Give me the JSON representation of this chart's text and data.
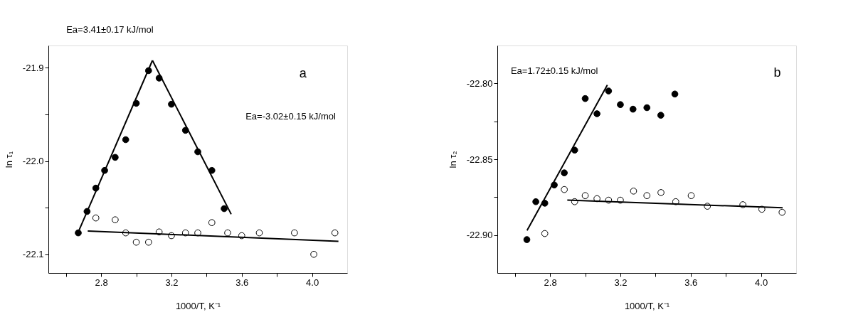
{
  "chart_data": [
    {
      "type": "scatter",
      "xlabel": "1000/T, K⁻¹",
      "ylabel": "ln τ₁",
      "marker": "circle",
      "line_style": "solid",
      "grid": false,
      "xlim": [
        2.5,
        4.2
      ],
      "ylim": [
        -22.12,
        -21.876
      ],
      "xticks": [
        {
          "value": 2.6,
          "label": null
        },
        2.8,
        {
          "value": 3.0,
          "label": null
        },
        3.2,
        {
          "value": 3.4,
          "label": null
        },
        3.6,
        {
          "value": 3.8,
          "label": null
        },
        {
          "value": 4.0,
          "label": "4.0"
        }
      ],
      "yticks": [
        -21.9,
        {
          "value": -21.95,
          "label": null
        },
        {
          "value": -22.0,
          "label": "-22.0"
        },
        {
          "value": -22.05,
          "label": null
        },
        -22.1
      ],
      "annotations": [
        "Ea=3.41±0.17 kJ/mol",
        "Ea=-3.02±0.15 kJ/mol",
        "a"
      ],
      "series": [
        {
          "color": "#000000",
          "x": [
            2.67,
            2.72,
            2.77,
            2.82,
            2.88,
            2.94,
            3.0,
            3.07,
            3.13,
            3.2,
            3.28,
            3.35,
            3.43,
            3.5
          ],
          "values": [
            -22.077,
            -22.054,
            -22.029,
            -22.01,
            -21.996,
            -21.977,
            -21.938,
            -21.903,
            -21.911,
            -21.939,
            -21.967,
            -21.99,
            -22.01,
            -22.051
          ]
        },
        {
          "color": "#ffffff",
          "x": [
            2.77,
            2.88,
            2.94,
            3.0,
            3.07,
            3.13,
            3.2,
            3.28,
            3.35,
            3.43,
            3.52,
            3.6,
            3.7,
            3.9,
            4.01,
            4.13
          ],
          "values": [
            -22.061,
            -22.063,
            -22.077,
            -22.087,
            -22.087,
            -22.076,
            -22.08,
            -22.077,
            -22.077,
            -22.066,
            -22.077,
            -22.08,
            -22.077,
            -22.077,
            -22.1,
            -22.077
          ]
        },
        {
          "type": "line",
          "marker": "none",
          "color": "#000000",
          "x": [
            2.675,
            3.092
          ],
          "values": [
            -22.074,
            -21.892
          ]
        },
        {
          "type": "line",
          "marker": "none",
          "color": "#000000",
          "x": [
            3.092,
            3.54
          ],
          "values": [
            -21.892,
            -22.057
          ]
        },
        {
          "type": "line",
          "marker": "none",
          "color": "#000000",
          "x": [
            2.724,
            4.15
          ],
          "values": [
            -22.075,
            -22.086
          ]
        }
      ]
    },
    {
      "type": "scatter",
      "xlabel": "1000/T, K⁻¹",
      "ylabel": "ln τ₂",
      "marker": "circle",
      "line_style": "solid",
      "grid": false,
      "xlim": [
        2.5,
        4.2
      ],
      "ylim": [
        -22.925,
        -22.775
      ],
      "xticks": [
        {
          "value": 2.6,
          "label": null
        },
        2.8,
        {
          "value": 3.0,
          "label": null
        },
        3.2,
        {
          "value": 3.4,
          "label": null
        },
        3.6,
        {
          "value": 3.8,
          "label": null
        },
        {
          "value": 4.0,
          "label": "4.0"
        }
      ],
      "yticks": [
        {
          "value": -22.8,
          "label": "-22.80"
        },
        {
          "value": -22.825,
          "label": null
        },
        -22.85,
        {
          "value": -22.875,
          "label": null
        },
        {
          "value": -22.9,
          "label": "-22.90"
        }
      ],
      "annotations": [
        "Ea=1.72±0.15 kJ/mol",
        "b"
      ],
      "series": [
        {
          "color": "#000000",
          "x": [
            2.668,
            2.719,
            2.77,
            2.824,
            2.881,
            2.94,
            3.0,
            3.067,
            3.133,
            3.2,
            3.272,
            3.351,
            3.43,
            3.51
          ],
          "values": [
            -22.903,
            -22.878,
            -22.879,
            -22.867,
            -22.859,
            -22.844,
            -22.81,
            -22.82,
            -22.805,
            -22.814,
            -22.817,
            -22.816,
            -22.821,
            -22.807
          ]
        },
        {
          "color": "#ffffff",
          "x": [
            2.77,
            2.881,
            2.94,
            3.0,
            3.067,
            3.133,
            3.2,
            3.275,
            3.351,
            3.431,
            3.515,
            3.603,
            3.695,
            3.897,
            4.005,
            4.12
          ],
          "values": [
            -22.899,
            -22.87,
            -22.878,
            -22.874,
            -22.876,
            -22.877,
            -22.877,
            -22.871,
            -22.874,
            -22.872,
            -22.878,
            -22.874,
            -22.881,
            -22.88,
            -22.883,
            -22.885
          ]
        },
        {
          "type": "line",
          "marker": "none",
          "color": "#000000",
          "x": [
            2.669,
            3.126
          ],
          "values": [
            -22.897,
            -22.801
          ]
        },
        {
          "type": "line",
          "marker": "none",
          "color": "#000000",
          "x": [
            2.898,
            4.123
          ],
          "values": [
            -22.877,
            -22.882
          ]
        }
      ]
    }
  ]
}
